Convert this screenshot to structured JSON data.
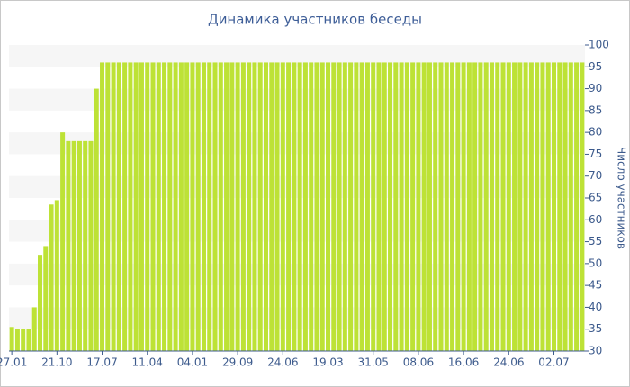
{
  "chart_data": {
    "type": "bar",
    "title": "Динамика участников беседы",
    "y_label": "Число участников",
    "categories": [
      "27.01",
      null,
      null,
      null,
      null,
      null,
      null,
      null,
      "21.10",
      null,
      null,
      null,
      null,
      null,
      null,
      null,
      "17.07",
      null,
      null,
      null,
      null,
      null,
      null,
      null,
      "11.04",
      null,
      null,
      null,
      null,
      null,
      null,
      null,
      "04.01",
      null,
      null,
      null,
      null,
      null,
      null,
      null,
      "29.09",
      null,
      null,
      null,
      null,
      null,
      null,
      null,
      "24.06",
      null,
      null,
      null,
      null,
      null,
      null,
      null,
      "19.03",
      null,
      null,
      null,
      null,
      null,
      null,
      null,
      "31.05",
      null,
      null,
      null,
      null,
      null,
      null,
      null,
      "08.06",
      null,
      null,
      null,
      null,
      null,
      null,
      null,
      "16.06",
      null,
      null,
      null,
      null,
      null,
      null,
      null,
      "24.06",
      null,
      null,
      null,
      null,
      null,
      null,
      null,
      "02.07",
      null,
      null,
      null,
      null,
      null
    ],
    "values": [
      35.5,
      35,
      35,
      35,
      40,
      52,
      54,
      63.5,
      64.5,
      80,
      78,
      78,
      78,
      78,
      78,
      90,
      96,
      96,
      96,
      96,
      96,
      96,
      96,
      96,
      96,
      96,
      96,
      96,
      96,
      96,
      96,
      96,
      96,
      96,
      96,
      96,
      96,
      96,
      96,
      96,
      96,
      96,
      96,
      96,
      96,
      96,
      96,
      96,
      96,
      96,
      96,
      96,
      96,
      96,
      96,
      96,
      96,
      96,
      96,
      96,
      96,
      96,
      96,
      96,
      96,
      96,
      96,
      96,
      96,
      96,
      96,
      96,
      96,
      96,
      96,
      96,
      96,
      96,
      96,
      96,
      96,
      96,
      96,
      96,
      96,
      96,
      96,
      96,
      96,
      96,
      96,
      96,
      96,
      96,
      96,
      96,
      96,
      96,
      96,
      96,
      96,
      96
    ],
    "color": "#bde236",
    "ylim": [
      30,
      100
    ],
    "yticks": [
      30,
      35,
      40,
      45,
      50,
      55,
      60,
      65,
      70,
      75,
      80,
      85,
      90,
      95,
      100
    ],
    "grid": true
  }
}
